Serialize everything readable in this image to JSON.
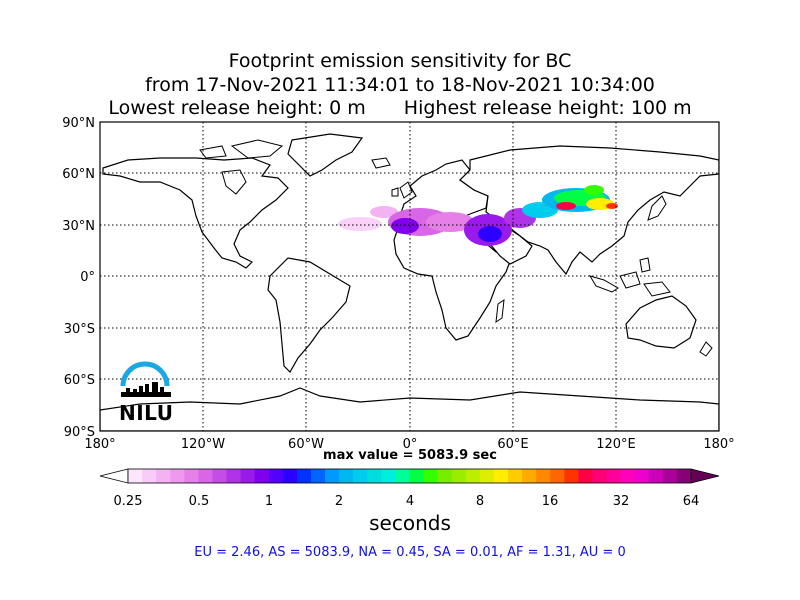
{
  "title": {
    "line1": "Footprint emission sensitivity for BC",
    "line2": "from 17-Nov-2021 11:34:01 to 18-Nov-2021 10:34:00",
    "line3_left": "Lowest release height: 0 m",
    "line3_right": "Highest release height: 100 m"
  },
  "map": {
    "lat_labels": [
      "90°N",
      "60°N",
      "30°N",
      "0°",
      "30°S",
      "60°S",
      "90°S"
    ],
    "lon_labels": [
      "180°",
      "120°W",
      "60°W",
      "0°",
      "60°E",
      "120°E",
      "180°"
    ],
    "land_color": "#ffffff",
    "coast_color": "#000000",
    "grid": "dotted"
  },
  "max_value_label": "max value = 5083.9 sec",
  "colorbar": {
    "tick_labels": [
      "0.25",
      "0.5",
      "1",
      "2",
      "4",
      "8",
      "16",
      "32",
      "64"
    ],
    "units": "seconds",
    "colors": [
      "#fde6fd",
      "#f8ccf8",
      "#f3b3f3",
      "#ee99ee",
      "#e680e8",
      "#d966e6",
      "#c44de6",
      "#b033e8",
      "#9a1aeb",
      "#8000ee",
      "#5500ff",
      "#2b00ff",
      "#0033ff",
      "#0066ff",
      "#0099ff",
      "#00b8f0",
      "#00ccee",
      "#00dddd",
      "#00eedd",
      "#00ff99",
      "#00ff44",
      "#33ff00",
      "#77ee00",
      "#99ee00",
      "#bbee00",
      "#ddee00",
      "#ffee00",
      "#ffcc00",
      "#ffaa00",
      "#ff8800",
      "#ff6600",
      "#ff3300",
      "#ff0044",
      "#ff0077",
      "#ff0099",
      "#ff00bb",
      "#ee00cc",
      "#cc00bb",
      "#aa0099",
      "#880077"
    ]
  },
  "logo": {
    "text": "NILU",
    "arc_color": "#1ba7e3"
  },
  "stats_line": "EU = 2.46,  AS = 5083.9,  NA = 0.45,  SA = 0.01,  AF = 1.31,  AU = 0"
}
